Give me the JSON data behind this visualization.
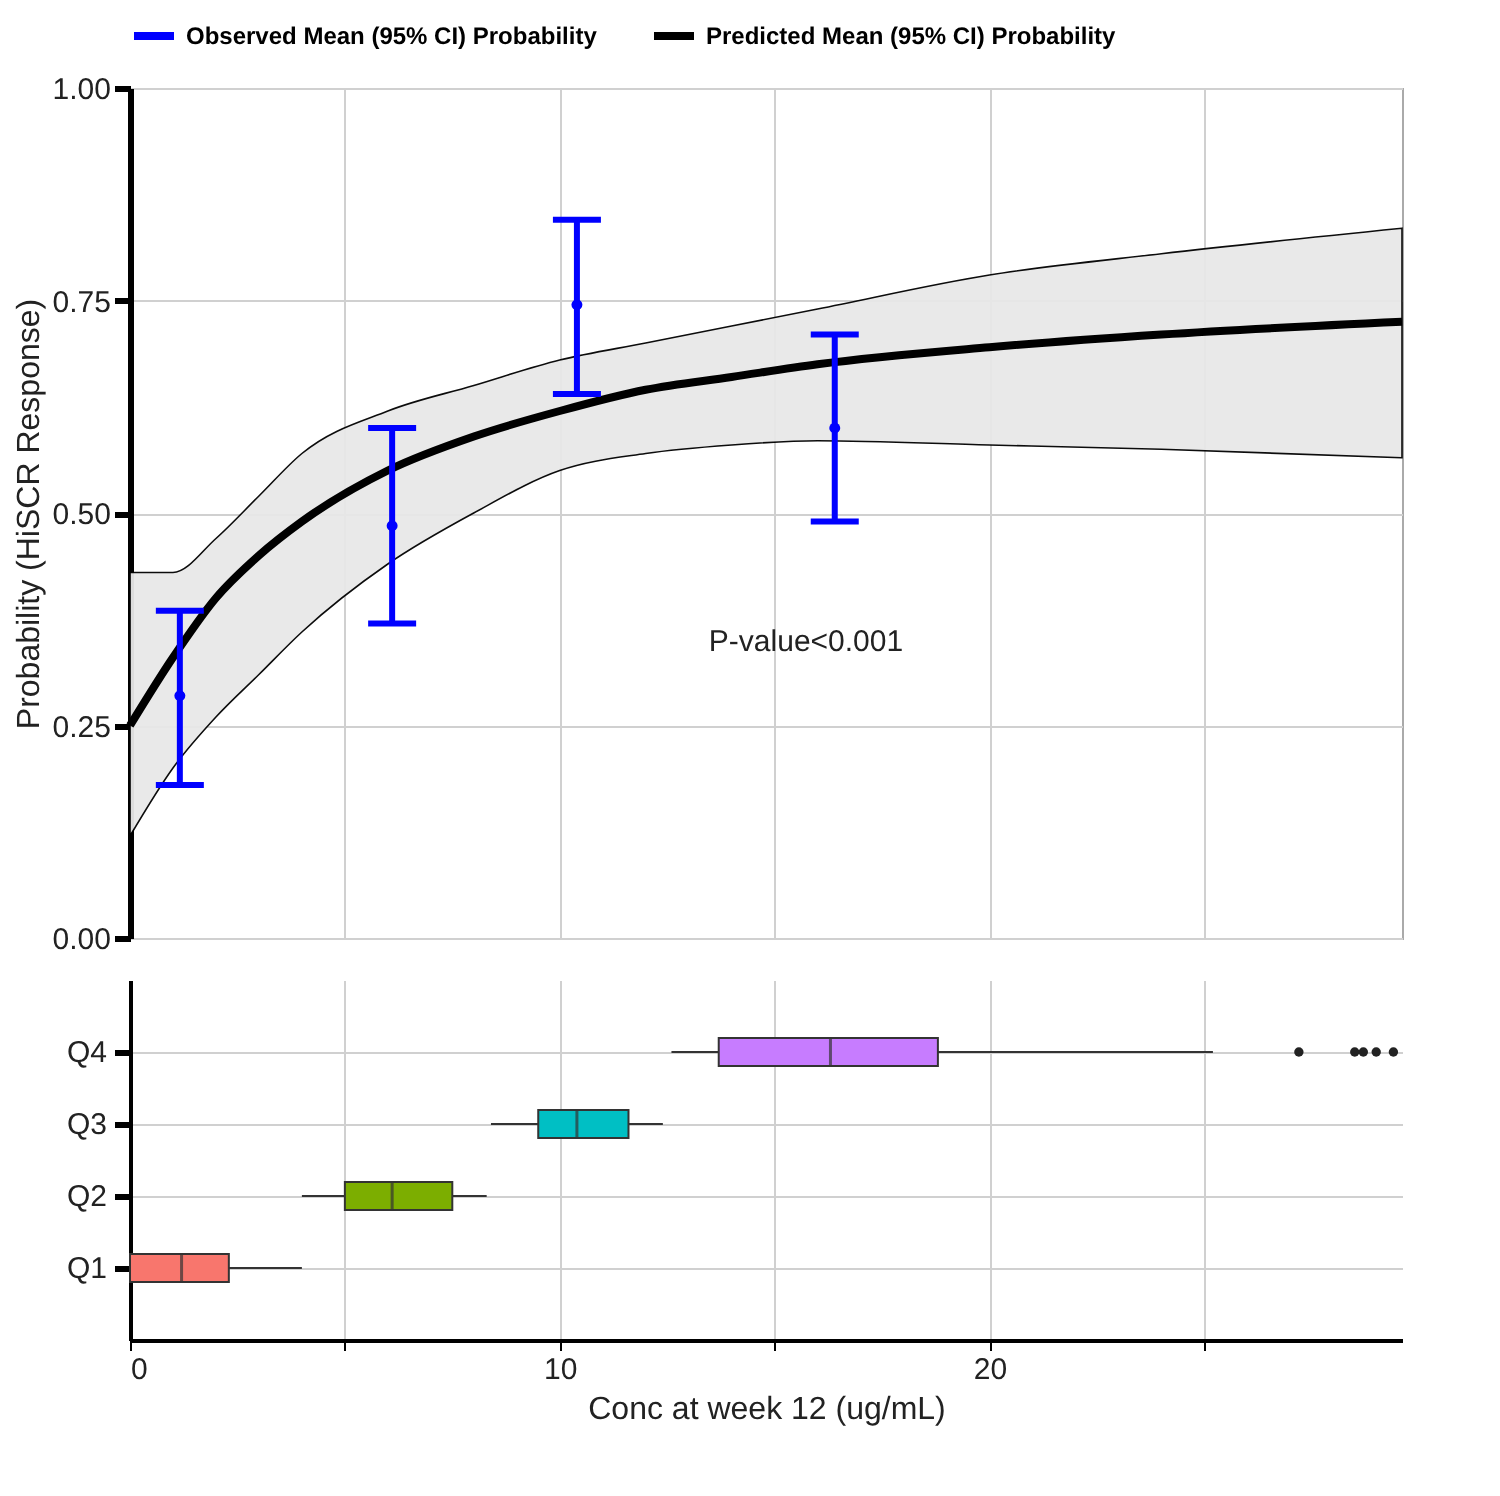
{
  "chart_data": [
    {
      "type": "line",
      "ylabel": "Probability (HiSCR Response)",
      "legend": "top",
      "grid": true,
      "tick_labels": "y",
      "xlim": [
        0,
        29.6
      ],
      "xticks": [
        0,
        {
          "value": 5,
          "label": null
        },
        10,
        {
          "value": 15,
          "label": null
        },
        20,
        {
          "value": 25,
          "label": null
        }
      ],
      "ylim": [
        0,
        1
      ],
      "yticks": [
        {
          "value": 0,
          "label": "0.00"
        },
        0.25,
        {
          "value": 0.5,
          "label": "0.50"
        },
        0.75,
        {
          "value": 1,
          "label": "1.00"
        }
      ],
      "series": [
        {
          "name": "Observed Mean (95% CI) Probability",
          "type": "scatter",
          "marker": "circle",
          "color": "#0000ff",
          "x": [
            1.16,
            6.1,
            10.4,
            16.4
          ],
          "values": [
            0.285,
            0.485,
            0.745,
            0.6
          ],
          "errors": [
            [
              0.18,
              0.385
            ],
            [
              0.37,
              0.6
            ],
            [
              0.64,
              0.845
            ],
            [
              0.49,
              0.71
            ]
          ]
        },
        {
          "name": "Predicted Mean (95% CI) Probability",
          "type": "line",
          "color": "#000000",
          "x": [
            0,
            1,
            2,
            3,
            4,
            6,
            8,
            10,
            12,
            14,
            16,
            20,
            24,
            29.6
          ],
          "values": [
            0.25,
            0.33,
            0.4,
            0.45,
            0.49,
            0.55,
            0.59,
            0.62,
            0.645,
            0.66,
            0.675,
            0.695,
            0.71,
            0.725
          ],
          "lower": [
            0.12,
            0.2,
            0.26,
            0.31,
            0.36,
            0.44,
            0.5,
            0.55,
            0.57,
            0.58,
            0.585,
            0.58,
            0.575,
            0.565
          ],
          "upper": [
            0.43,
            0.43,
            0.47,
            0.52,
            0.57,
            0.62,
            0.65,
            0.68,
            0.7,
            0.72,
            0.74,
            0.78,
            0.805,
            0.835
          ]
        }
      ],
      "annotations": [
        "P-value<0.001"
      ]
    },
    {
      "type": "box",
      "orientation": "horizontal",
      "xlabel": "Conc at week 12 (ug/mL)",
      "grid": true,
      "xlim": [
        0,
        29.6
      ],
      "xticks": [
        0,
        {
          "value": 5,
          "label": null
        },
        10,
        {
          "value": 15,
          "label": null
        },
        20,
        {
          "value": 25,
          "label": null
        }
      ],
      "categories": [
        "Q4",
        "Q3",
        "Q2",
        "Q1"
      ],
      "colors": [
        "#c77cff",
        "#00bfc4",
        "#7cae00",
        "#f8766d"
      ],
      "boxes": [
        {
          "low": 12.6,
          "q1": 13.7,
          "median": 16.3,
          "q3": 18.8,
          "high": 25.2,
          "outliers": [
            27.2,
            28.5,
            28.7,
            29.0,
            29.4
          ]
        },
        {
          "low": 8.4,
          "q1": 9.5,
          "median": 10.4,
          "q3": 11.6,
          "high": 12.4
        },
        {
          "low": 4.0,
          "q1": 5.0,
          "median": 6.1,
          "q3": 7.5,
          "high": 8.3
        },
        {
          "low": 0,
          "q1": 0,
          "median": 1.2,
          "q3": 2.3,
          "high": 4.0
        }
      ]
    }
  ]
}
